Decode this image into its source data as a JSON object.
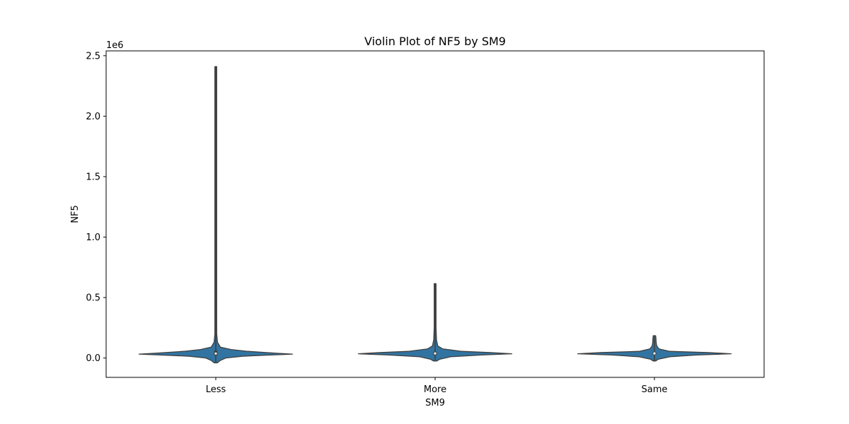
{
  "chart_data": {
    "type": "violin",
    "title": "Violin Plot of NF5 by SM9",
    "xlabel": "SM9",
    "ylabel": "NF5",
    "y_offset_label": "1e6",
    "categories": [
      "Less",
      "More",
      "Same"
    ],
    "ylim": [
      -160000,
      2540000
    ],
    "yticks": [
      0,
      500000,
      1000000,
      1500000,
      2000000,
      2500000
    ],
    "ytick_labels": [
      "0.0",
      "0.5",
      "1.0",
      "1.5",
      "2.0",
      "2.5"
    ],
    "grid": false,
    "fill_color": "#3274a1",
    "edge_color": "#3f3f3f",
    "violins": [
      {
        "category": "Less",
        "min": -40000,
        "max": 2410000,
        "q1": 22000,
        "median": 37000,
        "q3": 60000,
        "profile": [
          [
            -40000,
            0.02
          ],
          [
            -20000,
            0.06
          ],
          [
            0,
            0.13
          ],
          [
            15000,
            0.35
          ],
          [
            25000,
            0.72
          ],
          [
            32000,
            1.0
          ],
          [
            40000,
            0.78
          ],
          [
            55000,
            0.42
          ],
          [
            70000,
            0.2
          ],
          [
            90000,
            0.06
          ],
          [
            130000,
            0.022
          ],
          [
            200000,
            0.012
          ],
          [
            400000,
            0.008
          ],
          [
            1000000,
            0.006
          ],
          [
            2410000,
            0.005
          ]
        ]
      },
      {
        "category": "More",
        "min": -25000,
        "max": 615000,
        "q1": 25000,
        "median": 38000,
        "q3": 52000,
        "profile": [
          [
            -25000,
            0.02
          ],
          [
            -10000,
            0.06
          ],
          [
            10000,
            0.2
          ],
          [
            25000,
            0.6
          ],
          [
            35000,
            1.0
          ],
          [
            45000,
            0.72
          ],
          [
            55000,
            0.35
          ],
          [
            75000,
            0.1
          ],
          [
            100000,
            0.035
          ],
          [
            150000,
            0.018
          ],
          [
            250000,
            0.01
          ],
          [
            615000,
            0.008
          ]
        ]
      },
      {
        "category": "Same",
        "min": -25000,
        "max": 185000,
        "q1": 28000,
        "median": 38000,
        "q3": 48000,
        "profile": [
          [
            -25000,
            0.015
          ],
          [
            -10000,
            0.05
          ],
          [
            10000,
            0.2
          ],
          [
            25000,
            0.55
          ],
          [
            35000,
            1.0
          ],
          [
            45000,
            0.7
          ],
          [
            55000,
            0.2
          ],
          [
            75000,
            0.06
          ],
          [
            100000,
            0.03
          ],
          [
            130000,
            0.022
          ],
          [
            160000,
            0.02
          ],
          [
            185000,
            0.015
          ]
        ]
      }
    ]
  }
}
